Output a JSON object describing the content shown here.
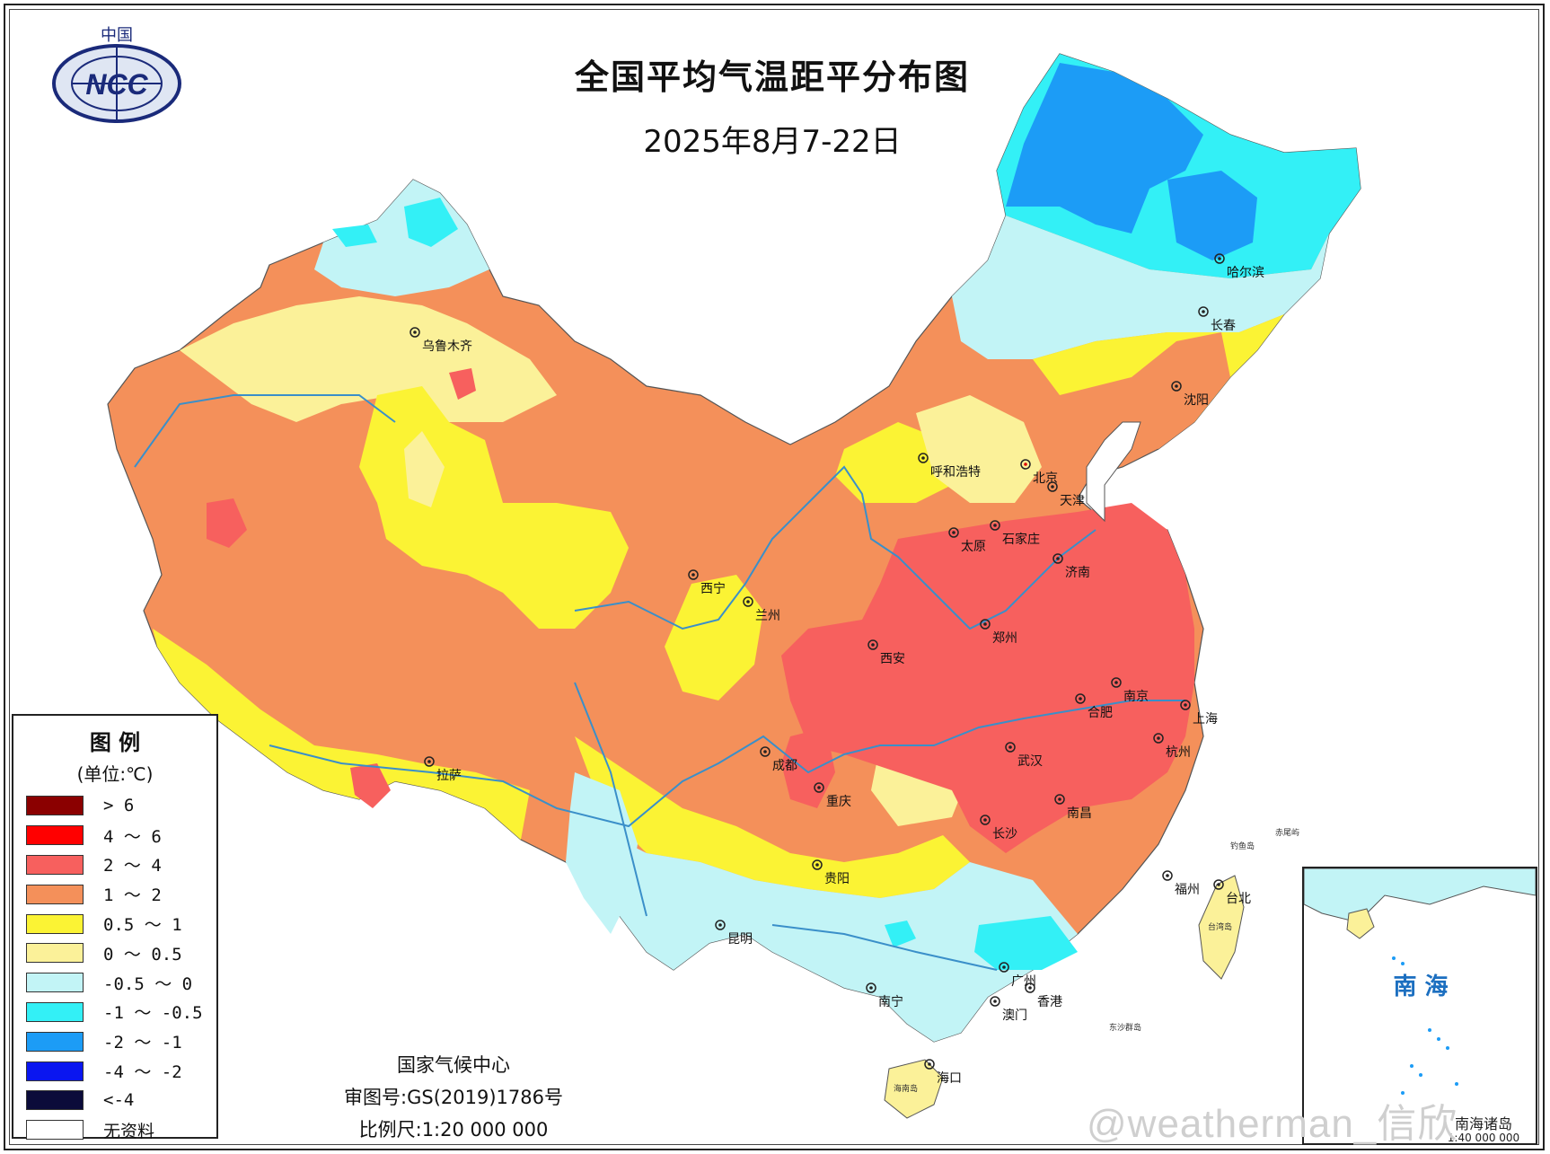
{
  "header": {
    "title": "全国平均气温距平分布图",
    "subtitle": "2025年8月7-22日"
  },
  "logo": {
    "top_text": "中国",
    "text": "NCC"
  },
  "legend": {
    "title": "图 例",
    "unit": "(单位:℃)",
    "items": [
      {
        "label": "> 6",
        "color": "#8b0000"
      },
      {
        "label": "4 ～ 6",
        "color": "#ff0000"
      },
      {
        "label": "2 ～ 4",
        "color": "#f7605e"
      },
      {
        "label": "1 ～ 2",
        "color": "#f4905a"
      },
      {
        "label": "0.5 ～ 1",
        "color": "#fbf334"
      },
      {
        "label": "0 ～ 0.5",
        "color": "#fbf199"
      },
      {
        "label": "-0.5 ～ 0",
        "color": "#c2f4f6"
      },
      {
        "label": "-1 ～ -0.5",
        "color": "#33f0f6"
      },
      {
        "label": "-2 ～ -1",
        "color": "#1c9cf6"
      },
      {
        "label": "-4 ～ -2",
        "color": "#0a16f0"
      },
      {
        "label": "<-4",
        "color": "#0b0b3a"
      },
      {
        "label": "无资料",
        "color": "#ffffff"
      }
    ]
  },
  "credits": {
    "org": "国家气候中心",
    "map_no": "审图号:GS(2019)1786号",
    "scale": "比例尺:1:20 000 000"
  },
  "cities": [
    {
      "name": "乌鲁木齐"
    },
    {
      "name": "呼和浩特"
    },
    {
      "name": "北京"
    },
    {
      "name": "天津"
    },
    {
      "name": "哈尔滨"
    },
    {
      "name": "长春"
    },
    {
      "name": "沈阳"
    },
    {
      "name": "石家庄"
    },
    {
      "name": "太原"
    },
    {
      "name": "济南"
    },
    {
      "name": "西宁"
    },
    {
      "name": "兰州"
    },
    {
      "name": "郑州"
    },
    {
      "name": "西安"
    },
    {
      "name": "南京"
    },
    {
      "name": "合肥"
    },
    {
      "name": "上海"
    },
    {
      "name": "拉萨"
    },
    {
      "name": "成都"
    },
    {
      "name": "武汉"
    },
    {
      "name": "杭州"
    },
    {
      "name": "重庆"
    },
    {
      "name": "长沙"
    },
    {
      "name": "南昌"
    },
    {
      "name": "福州"
    },
    {
      "name": "贵阳"
    },
    {
      "name": "台北"
    },
    {
      "name": "昆明"
    },
    {
      "name": "广州"
    },
    {
      "name": "南宁"
    },
    {
      "name": "澳门"
    },
    {
      "name": "香港"
    },
    {
      "name": "海口"
    }
  ],
  "place_labels": {
    "taiwan_island": "台湾岛",
    "hainan_island": "海南岛",
    "dongsha": "东沙群岛",
    "diaoyu": "钓鱼岛",
    "chiwei": "赤尾屿"
  },
  "inset": {
    "label": "南 海",
    "scale": "1:40 000 000",
    "caption": "南海诸岛"
  },
  "watermark": "@weatherman_信欣",
  "colors": {
    "river": "#3a8fc9",
    "frame": "#222222"
  }
}
